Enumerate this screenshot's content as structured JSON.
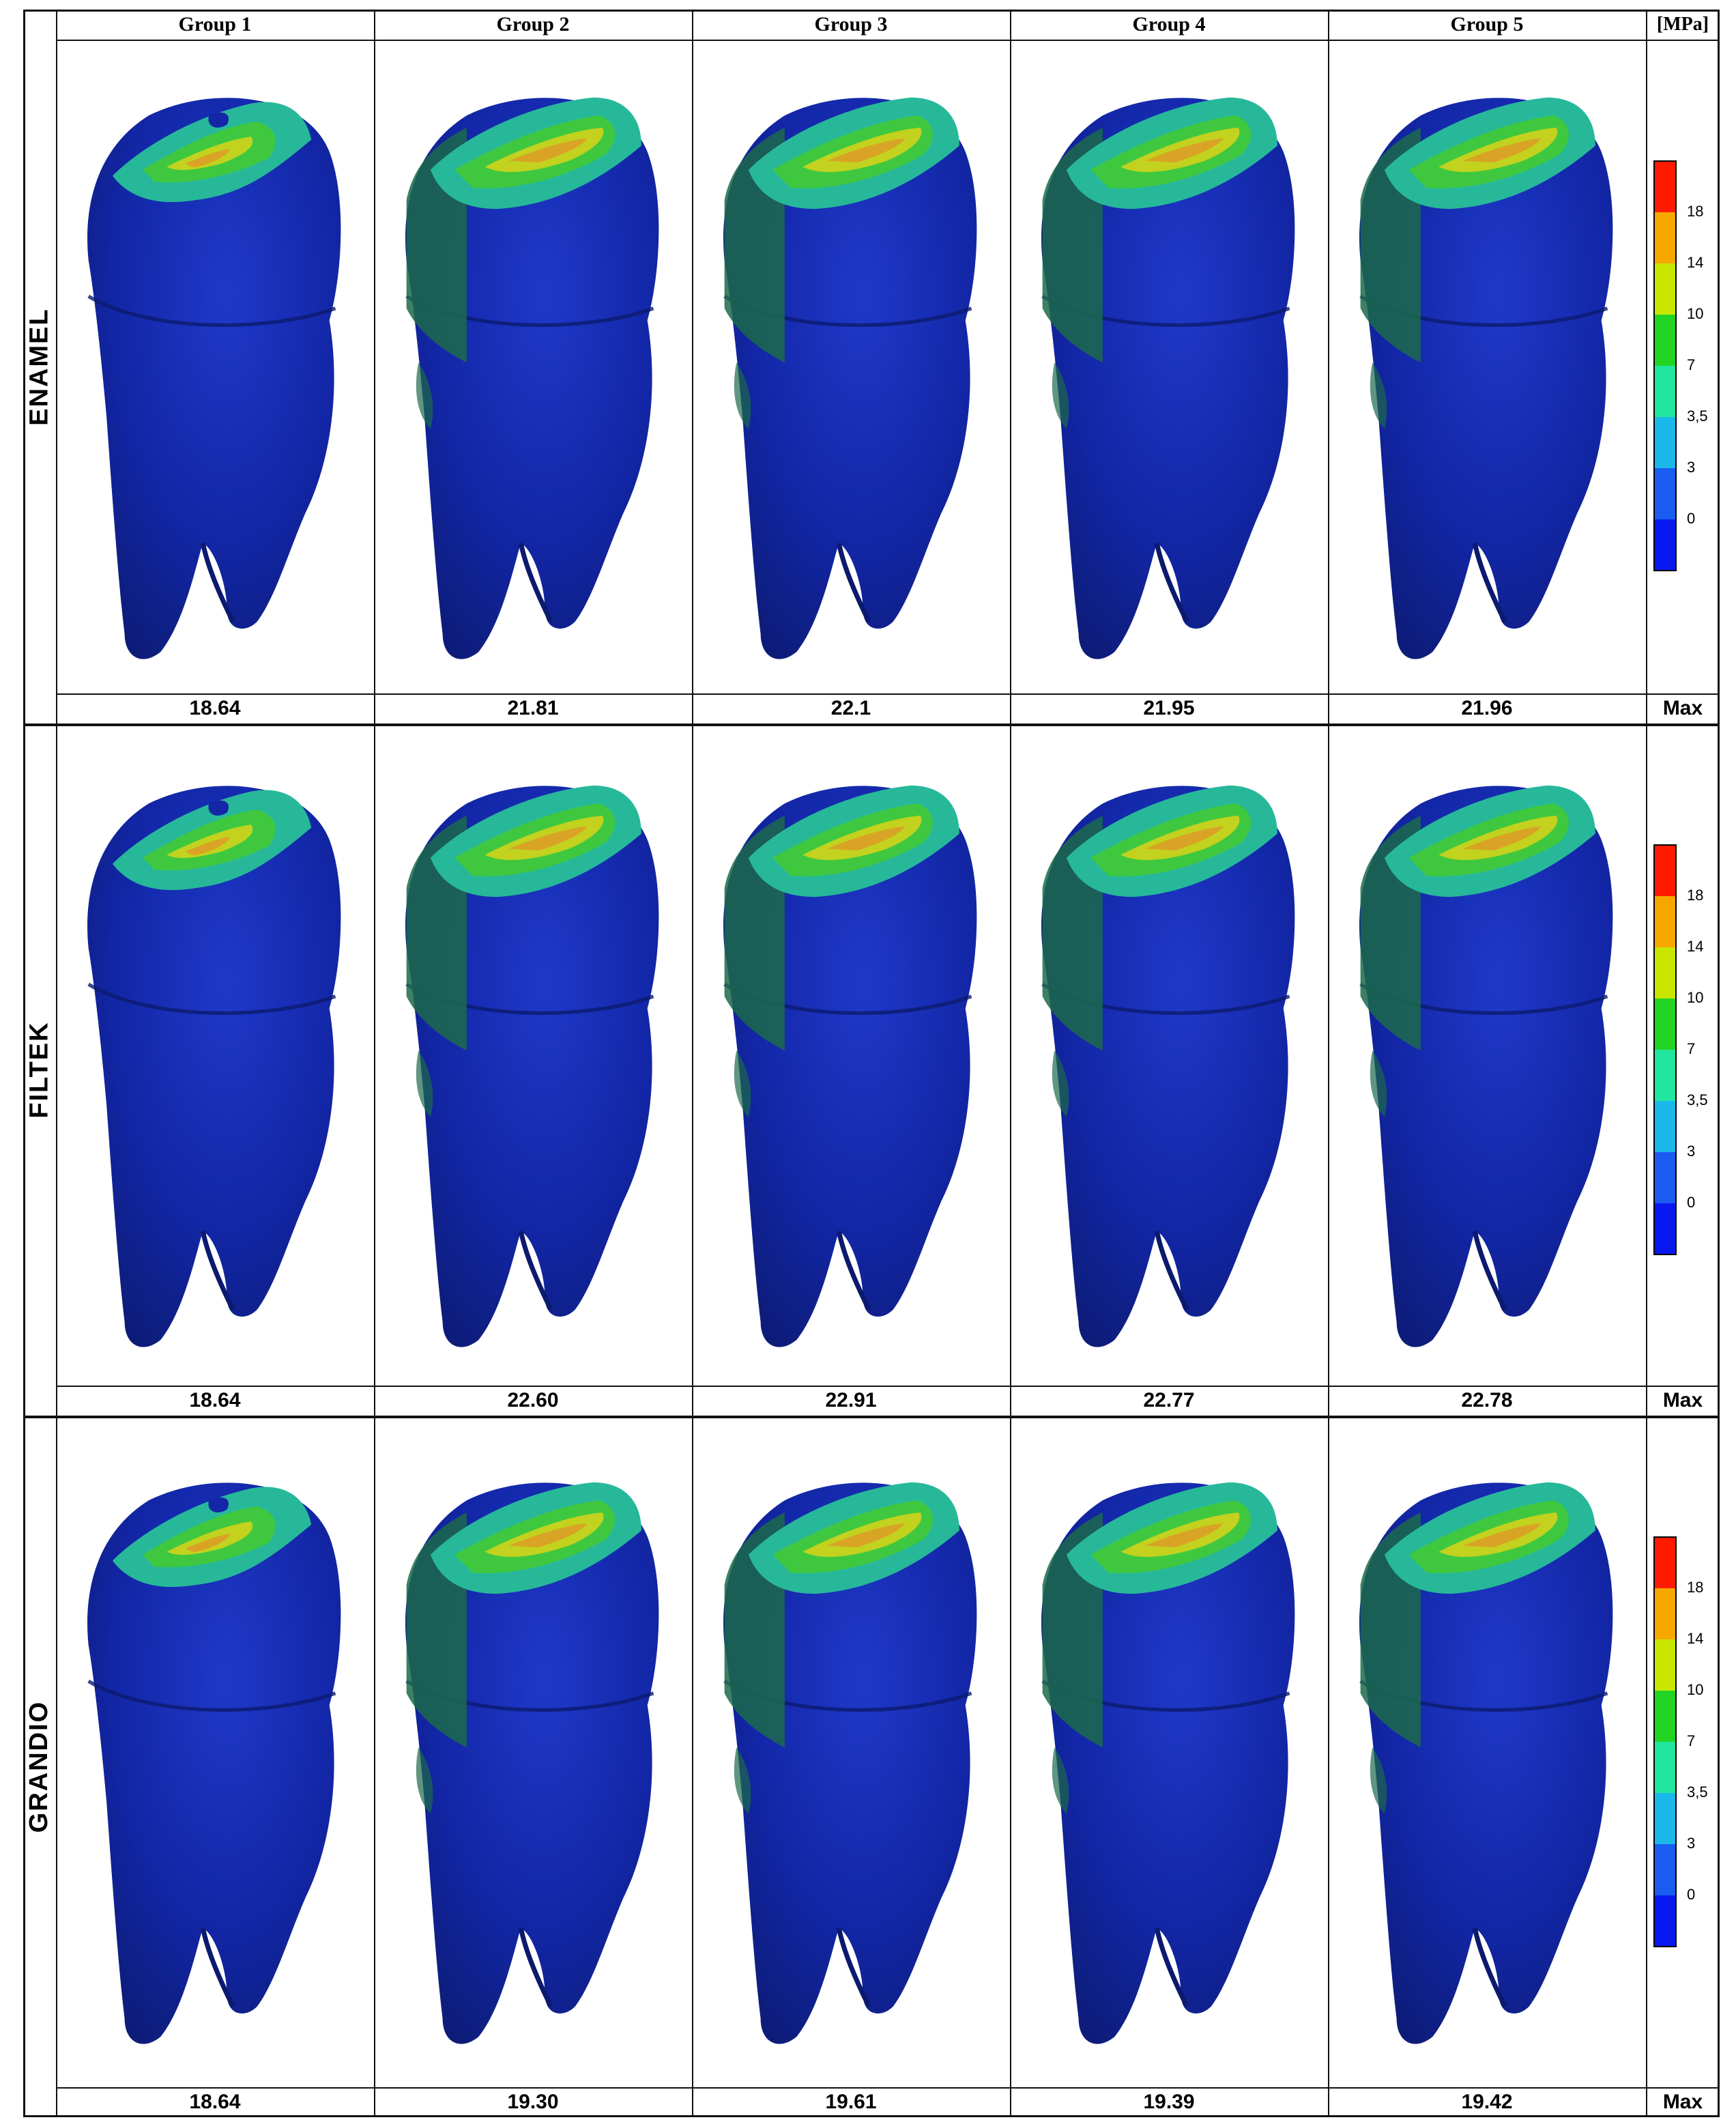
{
  "header": {
    "groups": [
      "Group 1",
      "Group 2",
      "Group 3",
      "Group 4",
      "Group 5"
    ],
    "unit": "[MPa]"
  },
  "rows": [
    {
      "label": "ENAMEL",
      "max_values": [
        "18.64",
        "21.81",
        "22.1",
        "21.95",
        "21.96"
      ],
      "max_label": "Max"
    },
    {
      "label": "FILTEK",
      "max_values": [
        "18.64",
        "22.60",
        "22.91",
        "22.77",
        "22.78"
      ],
      "max_label": "Max"
    },
    {
      "label": "GRANDIO",
      "max_values": [
        "18.64",
        "19.30",
        "19.61",
        "19.39",
        "19.42"
      ],
      "max_label": "Max"
    }
  ],
  "color_scale": {
    "ticks": [
      "18",
      "14",
      "10",
      "7",
      "3,5",
      "3",
      "0"
    ],
    "colors": [
      "#ff1a00",
      "#f7a800",
      "#c8e600",
      "#22d422",
      "#22e6a0",
      "#1ab8ea",
      "#1a5cf0",
      "#0a18f0"
    ]
  },
  "colors": {
    "tooth_dark": "#0c1a6e",
    "tooth_mid": "#1226a6",
    "tooth_light": "#1f39c9",
    "shoulder_green": "#1c6a4a",
    "stress_teal": "#27b89a",
    "stress_green": "#3fc83f",
    "stress_yellow": "#c2d21e",
    "stress_orange": "#d9a425"
  }
}
